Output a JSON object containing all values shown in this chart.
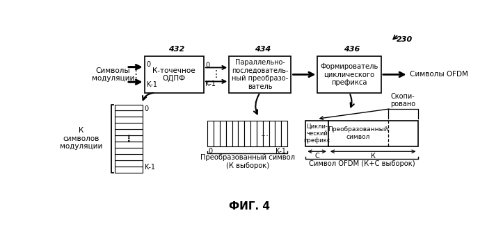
{
  "title": "ФИГ. 4",
  "background_color": "#ffffff",
  "label_230": "230",
  "label_432": "432",
  "label_434": "434",
  "label_436": "436",
  "box1_text": "К-точечное\nОДПФ",
  "box2_text": "Параллельно-\nпоследователь-\nный преобразо-\nватель",
  "box3_text": "Формирователь\nциклического\nпрефикса",
  "left_label": "Символы\nмодуляции",
  "right_label": "Символы OFDM",
  "k_label": "К\nсимволов\nмодуляции",
  "transformed_label": "Преобразованный символ\n(К выборок)",
  "ofdm_label": "Символ OFDM (К+С выборок)",
  "copied_label": "Скопи-\nровано",
  "cyclic_label": "Цикли-\nческий\nпрефикс",
  "converted_label": "Преобразованный\nсимвол",
  "c_label": "С",
  "k_arrow_label": "К"
}
